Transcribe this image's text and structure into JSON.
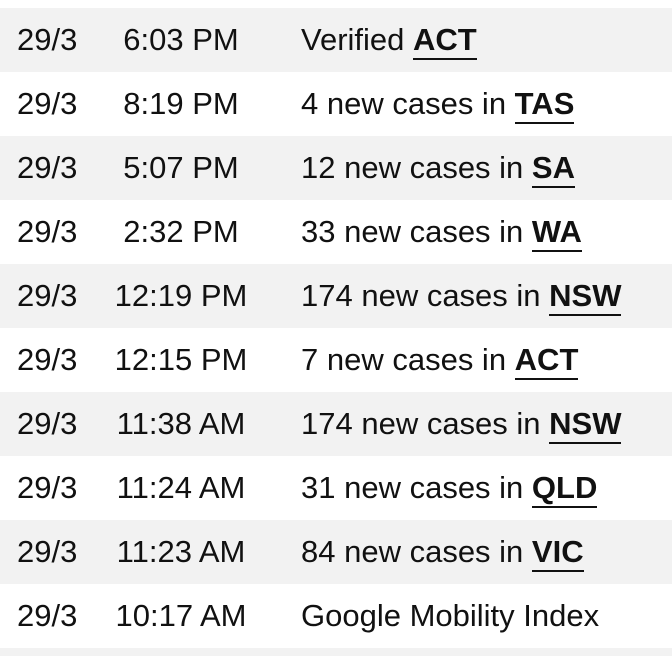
{
  "rows": [
    {
      "date": "29/3",
      "time": "6:03 PM",
      "text": "Verified ",
      "state": "ACT"
    },
    {
      "date": "29/3",
      "time": "8:19 PM",
      "text": "4 new cases in ",
      "state": "TAS"
    },
    {
      "date": "29/3",
      "time": "5:07 PM",
      "text": "12 new cases in ",
      "state": "SA"
    },
    {
      "date": "29/3",
      "time": "2:32 PM",
      "text": "33 new cases in ",
      "state": "WA"
    },
    {
      "date": "29/3",
      "time": "12:19 PM",
      "text": "174 new cases in ",
      "state": "NSW"
    },
    {
      "date": "29/3",
      "time": "12:15 PM",
      "text": "7 new cases in ",
      "state": "ACT"
    },
    {
      "date": "29/3",
      "time": "11:38 AM",
      "text": "174 new cases in ",
      "state": "NSW"
    },
    {
      "date": "29/3",
      "time": "11:24 AM",
      "text": "31 new cases in ",
      "state": "QLD"
    },
    {
      "date": "29/3",
      "time": "11:23 AM",
      "text": "84 new cases in ",
      "state": "VIC"
    },
    {
      "date": "29/3",
      "time": "10:17 AM",
      "text": "Google Mobility Index",
      "state": ""
    }
  ],
  "colors": {
    "row_alt_background": "#f2f2f2",
    "text": "#111111"
  }
}
